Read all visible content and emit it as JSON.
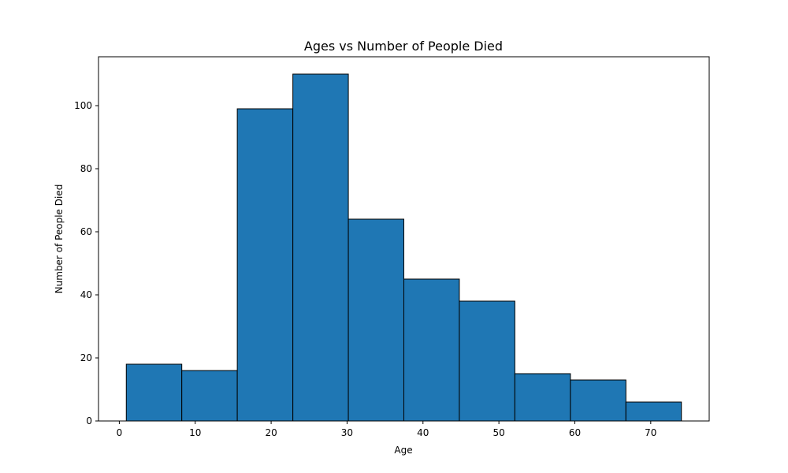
{
  "chart_data": {
    "type": "bar",
    "histogram": true,
    "title": "Ages vs Number of People Died",
    "xlabel": "Age",
    "ylabel": "Number of People Died",
    "bins": [
      {
        "start": 0.92,
        "end": 8.23,
        "count": 18
      },
      {
        "start": 8.23,
        "end": 15.54,
        "count": 16
      },
      {
        "start": 15.54,
        "end": 22.86,
        "count": 99
      },
      {
        "start": 22.86,
        "end": 30.17,
        "count": 110
      },
      {
        "start": 30.17,
        "end": 37.48,
        "count": 64
      },
      {
        "start": 37.48,
        "end": 44.79,
        "count": 45
      },
      {
        "start": 44.79,
        "end": 52.1,
        "count": 38
      },
      {
        "start": 52.1,
        "end": 59.42,
        "count": 15
      },
      {
        "start": 59.42,
        "end": 66.73,
        "count": 13
      },
      {
        "start": 66.73,
        "end": 74.04,
        "count": 6
      }
    ],
    "xlim": [
      -2.74,
      77.7
    ],
    "ylim": [
      0,
      115.5
    ],
    "xticks": [
      0,
      10,
      20,
      30,
      40,
      50,
      60,
      70
    ],
    "yticks": [
      0,
      20,
      40,
      60,
      80,
      100
    ],
    "grid": false,
    "bar_color": "#1f77b4",
    "edge_color": "#000000"
  }
}
